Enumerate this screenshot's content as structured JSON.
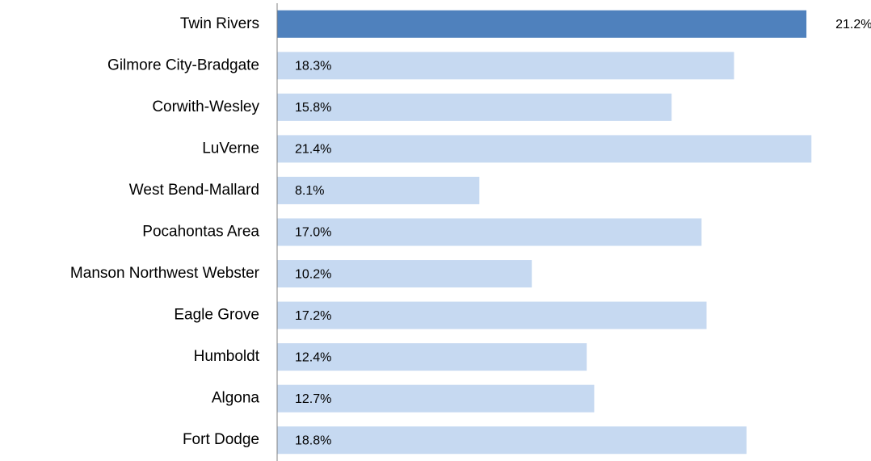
{
  "chart_data": {
    "type": "bar",
    "orientation": "horizontal",
    "categories": [
      "Twin Rivers",
      "Gilmore City-Bradgate",
      "Corwith-Wesley",
      "LuVerne",
      "West Bend-Mallard",
      "Pocahontas Area",
      "Manson Northwest Webster",
      "Eagle Grove",
      "Humboldt",
      "Algona",
      "Fort Dodge"
    ],
    "values": [
      21.2,
      18.3,
      15.8,
      21.4,
      8.1,
      17.0,
      10.2,
      17.2,
      12.4,
      12.7,
      18.8
    ],
    "value_labels": [
      "21.2%",
      "18.3%",
      "15.8%",
      "21.4%",
      "8.1%",
      "17.0%",
      "10.2%",
      "17.2%",
      "12.4%",
      "12.7%",
      "18.8%"
    ],
    "colors": [
      "#4f81bd",
      "#c6d9f1",
      "#c6d9f1",
      "#c6d9f1",
      "#c6d9f1",
      "#c6d9f1",
      "#c6d9f1",
      "#c6d9f1",
      "#c6d9f1",
      "#c6d9f1",
      "#c6d9f1"
    ],
    "xlim": [
      0,
      22
    ],
    "grid": false
  }
}
